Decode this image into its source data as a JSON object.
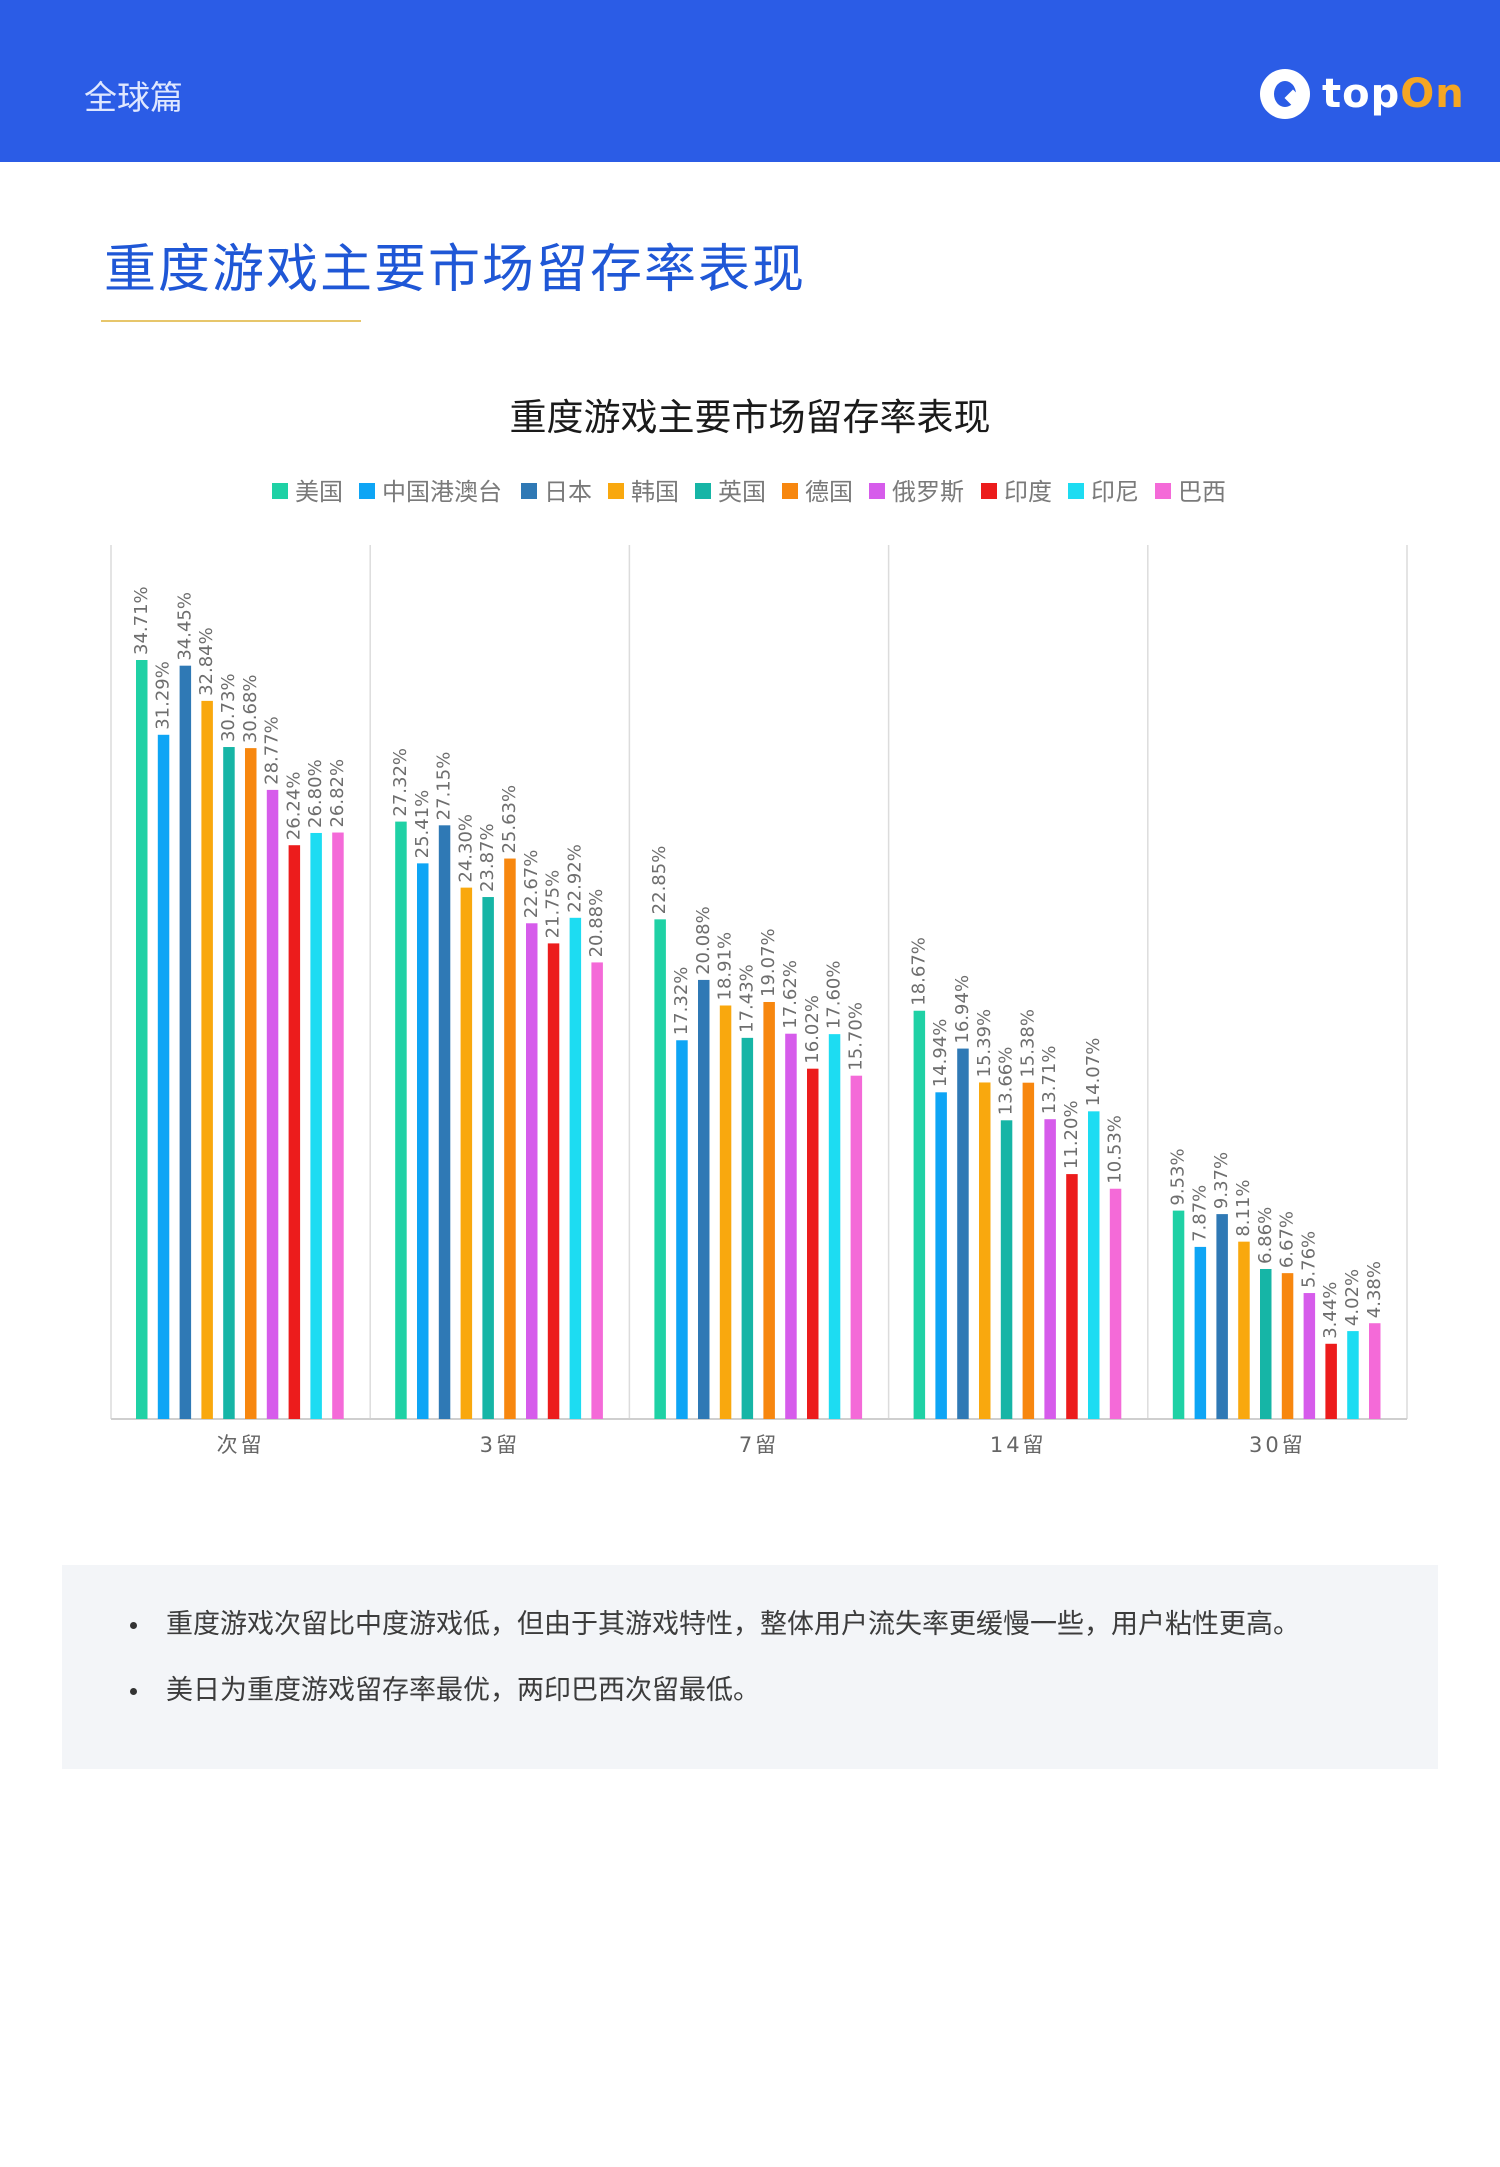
{
  "header": {
    "section_label": "全球篇",
    "logo_text_a": "top",
    "logo_text_b": "On"
  },
  "page_title": "重度游戏主要市场留存率表现",
  "chart_data": {
    "type": "bar",
    "title": "重度游戏主要市场留存率表现",
    "categories": [
      "次留",
      "3留",
      "7留",
      "14留",
      "30留"
    ],
    "legend_position": "top",
    "grid": false,
    "ylim": [
      0,
      40
    ],
    "value_format": "percent",
    "series": [
      {
        "name": "美国",
        "color": "#1fd1a5",
        "values": [
          34.71,
          27.32,
          22.85,
          18.67,
          9.53
        ]
      },
      {
        "name": "中国港澳台",
        "color": "#0ea5f5",
        "values": [
          31.29,
          25.41,
          17.32,
          14.94,
          7.87
        ]
      },
      {
        "name": "日本",
        "color": "#2f79b5",
        "values": [
          34.45,
          27.15,
          20.08,
          16.94,
          9.37
        ]
      },
      {
        "name": "韩国",
        "color": "#f9a80e",
        "values": [
          32.84,
          24.3,
          18.91,
          15.39,
          8.11
        ]
      },
      {
        "name": "英国",
        "color": "#16b5a6",
        "values": [
          30.73,
          23.87,
          17.43,
          13.66,
          6.86
        ]
      },
      {
        "name": "德国",
        "color": "#f7870f",
        "values": [
          30.68,
          25.63,
          19.07,
          15.38,
          6.67
        ]
      },
      {
        "name": "俄罗斯",
        "color": "#d65ceb",
        "values": [
          28.77,
          22.67,
          17.62,
          13.71,
          5.76
        ]
      },
      {
        "name": "印度",
        "color": "#ec1c1c",
        "values": [
          26.24,
          21.75,
          16.02,
          11.2,
          3.44
        ]
      },
      {
        "name": "印尼",
        "color": "#1ddcf2",
        "values": [
          26.8,
          22.92,
          17.6,
          14.07,
          4.02
        ]
      },
      {
        "name": "巴西",
        "color": "#f46ad8",
        "values": [
          26.82,
          20.88,
          15.7,
          10.53,
          4.38
        ]
      }
    ]
  },
  "notes": [
    "重度游戏次留比中度游戏低，但由于其游戏特性，整体用户流失率更缓慢一些，用户粘性更高。",
    "美日为重度游戏留存率最优，两印巴西次留最低。"
  ]
}
